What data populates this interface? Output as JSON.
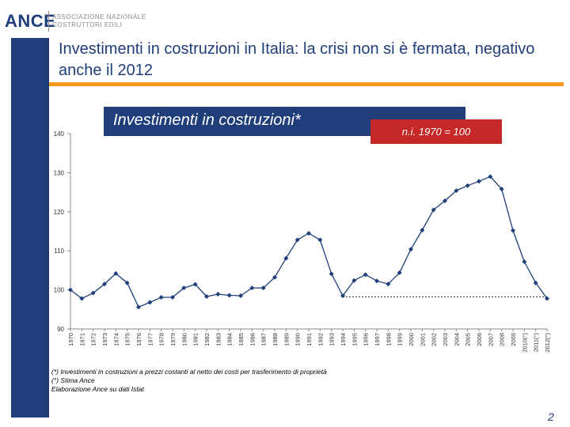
{
  "logo": {
    "name": "ANCE",
    "sub1": "ASSOCIAZIONE NAZIONALE",
    "sub2": "COSTRUTTORI EDILI"
  },
  "slide": {
    "title": "Investimenti in costruzioni in Italia:  la crisi non si è fermata, negativo anche il 2012",
    "page": "2"
  },
  "chart_data": {
    "type": "line",
    "title": "Investimenti in costruzioni*",
    "index_note": "n.i. 1970 = 100",
    "ylim": [
      90,
      140
    ],
    "yticks": [
      90,
      100,
      110,
      120,
      130,
      140
    ],
    "categories": [
      "1970",
      "1971",
      "1972",
      "1973",
      "1974",
      "1975",
      "1976",
      "1977",
      "1978",
      "1979",
      "1980",
      "1981",
      "1982",
      "1983",
      "1984",
      "1985",
      "1986",
      "1987",
      "1988",
      "1989",
      "1990",
      "1991",
      "1992",
      "1993",
      "1994",
      "1995",
      "1996",
      "1997",
      "1998",
      "1999",
      "2000",
      "2001",
      "2002",
      "2003",
      "2004",
      "2005",
      "2006",
      "2007",
      "2008",
      "2009",
      "2010(°)",
      "2011(°)",
      "2012(°)"
    ],
    "series": [
      {
        "name": "Investimenti in costruzioni",
        "values": [
          100.0,
          97.8,
          99.2,
          101.5,
          104.2,
          101.8,
          95.6,
          96.8,
          98.1,
          98.1,
          100.5,
          101.4,
          98.3,
          98.9,
          98.6,
          98.5,
          100.5,
          100.5,
          103.2,
          108.1,
          112.8,
          114.5,
          112.8,
          104.1,
          98.5,
          102.4,
          103.9,
          102.3,
          101.5,
          104.4,
          110.4,
          115.3,
          120.5,
          122.8,
          125.4,
          126.7,
          127.8,
          129.0,
          125.8,
          115.2,
          107.2,
          101.8,
          97.8
        ]
      }
    ],
    "reference_line": {
      "from": "1994",
      "to": "2012(°)",
      "value": 98.2
    },
    "notes": [
      "(*) Investimenti in costruzioni a prezzi costanti al netto dei costi per trasferimento di proprietà",
      "(°) Stima Ance",
      "Elaborazione Ance su dati Istat"
    ],
    "colors": {
      "line": "#1f3e7a",
      "reference": "#333333",
      "axis": "#888888"
    }
  }
}
